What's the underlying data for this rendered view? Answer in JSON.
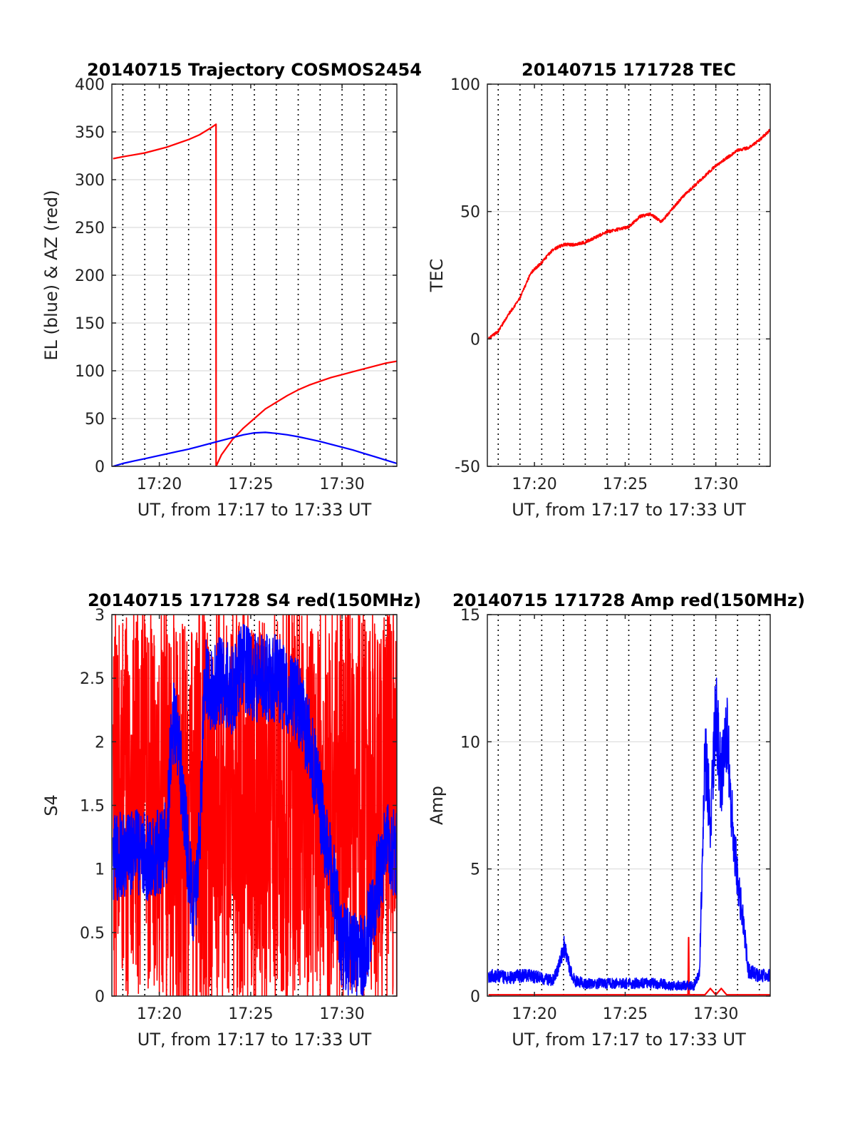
{
  "colors": {
    "red": "#ff0000",
    "blue": "#0000ff",
    "axis": "#262626",
    "grid": "#dcdcdc",
    "dotted": "#000000"
  },
  "chart_data": [
    {
      "type": "line",
      "title": "20140715 Trajectory COSMOS2454",
      "xlabel": "UT, from 17:17 to 17:33 UT",
      "ylabel": "EL (blue) & AZ (red)",
      "xlim": [
        17.29,
        17.55
      ],
      "ylim": [
        0,
        400
      ],
      "xticks": [
        {
          "v": 17.3333,
          "label": "17:20"
        },
        {
          "v": 17.4167,
          "label": "17:25"
        },
        {
          "v": 17.5,
          "label": "17:30"
        }
      ],
      "yticks": [
        {
          "v": 0,
          "label": "0"
        },
        {
          "v": 50,
          "label": "50"
        },
        {
          "v": 100,
          "label": "100"
        },
        {
          "v": 150,
          "label": "150"
        },
        {
          "v": 200,
          "label": "200"
        },
        {
          "v": 250,
          "label": "250"
        },
        {
          "v": 300,
          "label": "300"
        },
        {
          "v": 350,
          "label": "350"
        },
        {
          "v": 400,
          "label": "400"
        }
      ],
      "grid": true,
      "series": [
        {
          "color": "red",
          "x": [
            17.2911,
            17.3,
            17.31,
            17.32,
            17.33,
            17.34,
            17.35,
            17.36,
            17.37,
            17.38,
            17.385,
            17.3851,
            17.39,
            17.4,
            17.41,
            17.42,
            17.43,
            17.44,
            17.45,
            17.46,
            17.47,
            17.48,
            17.49,
            17.5,
            17.51,
            17.52,
            17.53,
            17.54,
            17.55
          ],
          "y": [
            322,
            324,
            326,
            328,
            331,
            334,
            338,
            342,
            347,
            354,
            358,
            0,
            12,
            28,
            40,
            50,
            60,
            67,
            74,
            80,
            85,
            89,
            93,
            96,
            99,
            102,
            105,
            108,
            110
          ]
        },
        {
          "color": "blue",
          "x": [
            17.2911,
            17.3,
            17.31,
            17.32,
            17.33,
            17.34,
            17.35,
            17.36,
            17.37,
            17.38,
            17.39,
            17.4,
            17.41,
            17.42,
            17.43,
            17.44,
            17.45,
            17.46,
            17.47,
            17.48,
            17.49,
            17.5,
            17.51,
            17.52,
            17.53,
            17.54,
            17.55
          ],
          "y": [
            0,
            3,
            5.5,
            8,
            10.5,
            13,
            15.5,
            18,
            21,
            24,
            27,
            30,
            33,
            35,
            35.5,
            34.5,
            33,
            31,
            28.5,
            26,
            23,
            20,
            17,
            13.5,
            10,
            6.5,
            3
          ]
        }
      ]
    },
    {
      "type": "line",
      "title": "20140715 171728 TEC",
      "xlabel": "UT, from 17:17 to 17:33 UT",
      "ylabel": "TEC",
      "xlim": [
        17.29,
        17.55
      ],
      "ylim": [
        -50,
        100
      ],
      "xticks": [
        {
          "v": 17.3333,
          "label": "17:20"
        },
        {
          "v": 17.4167,
          "label": "17:25"
        },
        {
          "v": 17.5,
          "label": "17:30"
        }
      ],
      "yticks": [
        {
          "v": -50,
          "label": "-50"
        },
        {
          "v": 0,
          "label": "0"
        },
        {
          "v": 50,
          "label": "50"
        },
        {
          "v": 100,
          "label": "100"
        }
      ],
      "grid": true,
      "series": [
        {
          "color": "red",
          "noise": 0.6,
          "x": [
            17.2911,
            17.3,
            17.31,
            17.32,
            17.33,
            17.34,
            17.35,
            17.36,
            17.37,
            17.38,
            17.39,
            17.4,
            17.41,
            17.42,
            17.43,
            17.44,
            17.45,
            17.46,
            17.47,
            17.48,
            17.49,
            17.5,
            17.51,
            17.52,
            17.53,
            17.54,
            17.55
          ],
          "y": [
            0,
            3,
            10,
            16,
            26,
            30,
            35,
            37,
            37,
            38,
            40,
            42,
            43,
            44,
            48,
            49,
            46,
            51,
            56,
            60,
            64,
            68,
            71,
            74,
            75,
            78,
            82
          ]
        }
      ]
    },
    {
      "type": "line",
      "title": "20140715 171728 S4 red(150MHz)",
      "xlabel": "UT, from 17:17 to 17:33 UT",
      "ylabel": "S4",
      "xlim": [
        17.29,
        17.55
      ],
      "ylim": [
        0,
        3
      ],
      "xticks": [
        {
          "v": 17.3333,
          "label": "17:20"
        },
        {
          "v": 17.4167,
          "label": "17:25"
        },
        {
          "v": 17.5,
          "label": "17:30"
        }
      ],
      "yticks": [
        {
          "v": 0,
          "label": "0"
        },
        {
          "v": 0.5,
          "label": "0.5"
        },
        {
          "v": 1,
          "label": "1"
        },
        {
          "v": 1.5,
          "label": "1.5"
        },
        {
          "v": 2,
          "label": "2"
        },
        {
          "v": 2.5,
          "label": "2.5"
        },
        {
          "v": 3,
          "label": "3"
        }
      ],
      "grid": true,
      "series": [
        {
          "color": "red",
          "noise": 1.6,
          "x": [
            17.2911,
            17.31,
            17.33,
            17.35,
            17.36,
            17.37,
            17.38,
            17.39,
            17.4,
            17.41,
            17.42,
            17.43,
            17.44,
            17.45,
            17.46,
            17.47,
            17.48,
            17.49,
            17.5,
            17.51,
            17.52,
            17.53,
            17.54,
            17.55
          ],
          "y": [
            1.5,
            1.5,
            1.5,
            1.5,
            1.3,
            1.5,
            1.5,
            1.5,
            1.5,
            1.5,
            1.5,
            1.5,
            1.5,
            1.5,
            1.5,
            1.5,
            1.5,
            1.5,
            1.5,
            1.5,
            1.5,
            1.5,
            1.5,
            1.5
          ]
        },
        {
          "color": "blue",
          "noise": 0.35,
          "x": [
            17.2911,
            17.3,
            17.31,
            17.32,
            17.33,
            17.34,
            17.345,
            17.35,
            17.355,
            17.36,
            17.365,
            17.37,
            17.375,
            17.38,
            17.39,
            17.4,
            17.41,
            17.42,
            17.43,
            17.44,
            17.45,
            17.46,
            17.47,
            17.48,
            17.49,
            17.5,
            17.51,
            17.52,
            17.53,
            17.54,
            17.55
          ],
          "y": [
            1.1,
            1.1,
            1.15,
            1.1,
            1.1,
            1.2,
            2.2,
            2.0,
            1.6,
            1.0,
            0.7,
            1.2,
            2.6,
            2.4,
            2.5,
            2.4,
            2.6,
            2.5,
            2.5,
            2.5,
            2.4,
            2.3,
            2.0,
            1.5,
            1.0,
            0.4,
            0.3,
            0.3,
            0.8,
            1.2,
            1.1
          ]
        }
      ]
    },
    {
      "type": "line",
      "title": "20140715 171728 Amp red(150MHz)",
      "xlabel": "UT, from 17:17 to 17:33 UT",
      "ylabel": "Amp",
      "xlim": [
        17.29,
        17.55
      ],
      "ylim": [
        0,
        15
      ],
      "xticks": [
        {
          "v": 17.3333,
          "label": "17:20"
        },
        {
          "v": 17.4167,
          "label": "17:25"
        },
        {
          "v": 17.5,
          "label": "17:30"
        }
      ],
      "yticks": [
        {
          "v": 0,
          "label": "0"
        },
        {
          "v": 5,
          "label": "5"
        },
        {
          "v": 10,
          "label": "10"
        },
        {
          "v": 15,
          "label": "15"
        }
      ],
      "grid": true,
      "series": [
        {
          "color": "red",
          "x": [
            17.2911,
            17.47,
            17.4745,
            17.475,
            17.4755,
            17.48,
            17.49,
            17.495,
            17.5,
            17.505,
            17.51,
            17.55
          ],
          "y": [
            0.05,
            0.05,
            0.05,
            2.3,
            0.05,
            0.05,
            0.05,
            0.3,
            0.05,
            0.3,
            0.05,
            0.05
          ]
        },
        {
          "color": "blue",
          "noise": 0.45,
          "x": [
            17.2911,
            17.3,
            17.31,
            17.32,
            17.33,
            17.34,
            17.35,
            17.355,
            17.36,
            17.365,
            17.37,
            17.38,
            17.39,
            17.4,
            17.41,
            17.42,
            17.43,
            17.44,
            17.45,
            17.46,
            17.47,
            17.48,
            17.485,
            17.49,
            17.495,
            17.5,
            17.505,
            17.51,
            17.515,
            17.52,
            17.525,
            17.53,
            17.54,
            17.55
          ],
          "y": [
            0.8,
            0.8,
            0.7,
            0.8,
            0.8,
            0.7,
            0.6,
            1.0,
            2.0,
            1.2,
            0.6,
            0.5,
            0.5,
            0.5,
            0.5,
            0.5,
            0.5,
            0.5,
            0.5,
            0.4,
            0.4,
            0.4,
            1.0,
            9.5,
            7.0,
            11.0,
            8.5,
            10.5,
            7.0,
            4.5,
            3.0,
            1.0,
            0.8,
            0.8
          ]
        }
      ]
    }
  ]
}
